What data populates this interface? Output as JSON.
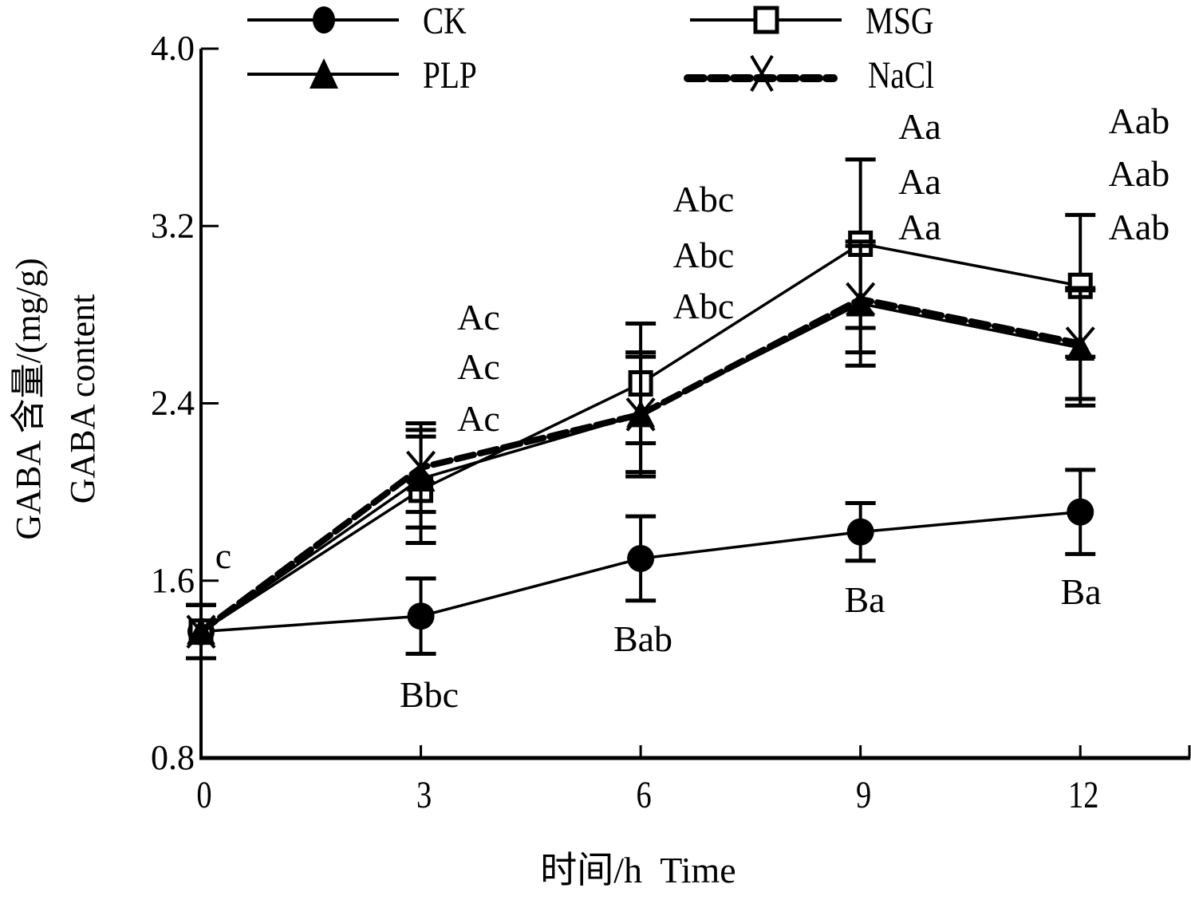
{
  "chart_data": {
    "type": "line",
    "title": "",
    "xlabel": "时间/h  Time",
    "ylabel_line1": "GABA 含量/(mg/g)",
    "ylabel_line2": "GABA content",
    "x": [
      0,
      3,
      6,
      9,
      12
    ],
    "xlim": [
      0,
      13.5
    ],
    "ylim": [
      0.8,
      4.0
    ],
    "x_ticks": [
      "0",
      "3",
      "6",
      "9",
      "12"
    ],
    "y_ticks": [
      "0.8",
      "1.6",
      "2.4",
      "3.2",
      "4.0"
    ],
    "x_tick_values": [
      0,
      3,
      6,
      9,
      12
    ],
    "y_tick_values": [
      0.8,
      1.6,
      2.4,
      3.2,
      4.0
    ],
    "grid": false,
    "legend_position": "top",
    "series": [
      {
        "name": "CK",
        "marker": "filled-circle",
        "line": "solid",
        "values": [
          1.37,
          1.44,
          1.7,
          1.82,
          1.91
        ],
        "errors": [
          0.12,
          0.17,
          0.19,
          0.13,
          0.19
        ]
      },
      {
        "name": "MSG",
        "marker": "open-square",
        "line": "solid",
        "values": [
          1.37,
          2.01,
          2.49,
          3.12,
          2.93
        ],
        "errors": [
          0.12,
          0.24,
          0.27,
          0.38,
          0.32
        ]
      },
      {
        "name": "PLP",
        "marker": "filled-triangle",
        "line": "solid",
        "values": [
          1.37,
          2.06,
          2.35,
          2.85,
          2.65
        ],
        "errors": [
          0.12,
          0.22,
          0.28,
          0.28,
          0.26
        ]
      },
      {
        "name": "NaCl",
        "marker": "x-cross",
        "line": "dashed",
        "values": [
          1.37,
          2.11,
          2.35,
          2.87,
          2.67
        ],
        "errors": [
          0.12,
          0.2,
          0.26,
          0.24,
          0.25
        ]
      }
    ],
    "annotations": {
      "t0": [
        "c"
      ],
      "upper": [
        {
          "x": 3,
          "labels": [
            "Ac",
            "Ac",
            "Ac"
          ]
        },
        {
          "x": 6,
          "labels": [
            "Abc",
            "Abc",
            "Abc"
          ]
        },
        {
          "x": 9,
          "labels": [
            "Aa",
            "Aa",
            "Aa"
          ]
        },
        {
          "x": 12,
          "labels": [
            "Aab",
            "Aab",
            "Aab"
          ]
        }
      ],
      "lower": [
        {
          "x": 3,
          "label": "Bbc"
        },
        {
          "x": 6,
          "label": "Bab"
        },
        {
          "x": 9,
          "label": "Ba"
        },
        {
          "x": 12,
          "label": "Ba"
        }
      ]
    },
    "colors": {
      "ink": "#000000",
      "background": "#ffffff"
    }
  }
}
